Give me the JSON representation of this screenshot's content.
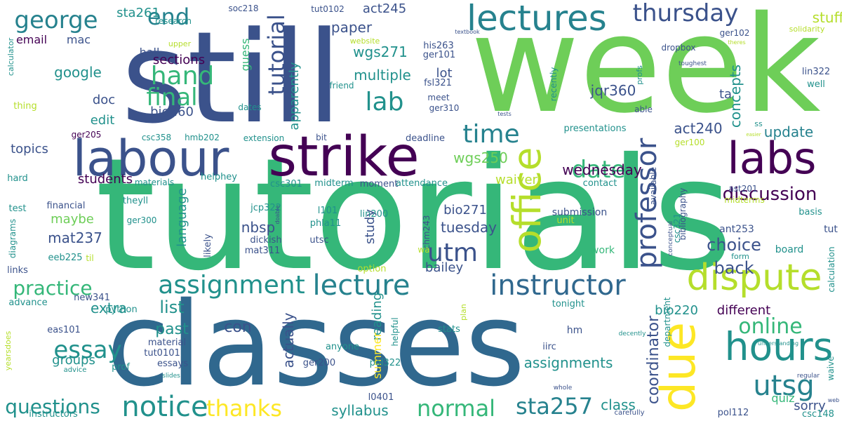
{
  "title": "",
  "colors": {
    "background": "#ffffff",
    "dark_purple": "#440154",
    "indigo": "#3b528b",
    "blue": "#30688e",
    "teal_blue": "#26828e",
    "teal": "#21918c",
    "green_teal": "#35b779",
    "green": "#6ece58",
    "lime": "#b5de2b",
    "yellow": "#fde725"
  },
  "words": [
    {
      "text": "tutorials"
    },
    {
      "text": "week"
    },
    {
      "text": "still"
    },
    {
      "text": "classes"
    },
    {
      "text": "strike"
    },
    {
      "text": "labour"
    },
    {
      "text": "lectures"
    },
    {
      "text": "due"
    },
    {
      "text": "labs"
    },
    {
      "text": "office"
    },
    {
      "text": "hours"
    },
    {
      "text": "dispute"
    },
    {
      "text": "lecture"
    },
    {
      "text": "instructor"
    },
    {
      "text": "assignment"
    },
    {
      "text": "notice"
    },
    {
      "text": "professor"
    },
    {
      "text": "thursday"
    },
    {
      "text": "george"
    },
    {
      "text": "end"
    },
    {
      "text": "tutorial"
    },
    {
      "text": "lab"
    },
    {
      "text": "hand"
    },
    {
      "text": "final"
    },
    {
      "text": "time"
    },
    {
      "text": "date"
    },
    {
      "text": "utm"
    },
    {
      "text": "utsg"
    },
    {
      "text": "online"
    },
    {
      "text": "discussion"
    },
    {
      "text": "essay"
    },
    {
      "text": "practice"
    },
    {
      "text": "questions"
    },
    {
      "text": "thanks"
    },
    {
      "text": "normal"
    },
    {
      "text": "sta257"
    },
    {
      "text": "assignments"
    },
    {
      "text": "coordinator"
    },
    {
      "text": "wednesday"
    },
    {
      "text": "tuesday"
    },
    {
      "text": "update"
    },
    {
      "text": "choice"
    },
    {
      "text": "back"
    },
    {
      "text": "stuff"
    },
    {
      "text": "sta261"
    },
    {
      "text": "act245"
    },
    {
      "text": "paper"
    },
    {
      "text": "wgs271"
    },
    {
      "text": "multiple"
    },
    {
      "text": "apparently"
    },
    {
      "text": "guess"
    },
    {
      "text": "sections"
    },
    {
      "text": "email"
    },
    {
      "text": "mac"
    },
    {
      "text": "google"
    },
    {
      "text": "doc"
    },
    {
      "text": "edit"
    },
    {
      "text": "bio260"
    },
    {
      "text": "topics"
    },
    {
      "text": "students"
    },
    {
      "text": "jqr360"
    },
    {
      "text": "concepts"
    },
    {
      "text": "act240"
    },
    {
      "text": "wgs250"
    },
    {
      "text": "waiver"
    },
    {
      "text": "language"
    },
    {
      "text": "nbsp"
    },
    {
      "text": "bio271"
    },
    {
      "text": "bailey"
    },
    {
      "text": "list"
    },
    {
      "text": "past"
    },
    {
      "text": "extra"
    },
    {
      "text": "con"
    },
    {
      "text": "maybe"
    },
    {
      "text": "mat237"
    },
    {
      "text": "groups"
    },
    {
      "text": "actually"
    },
    {
      "text": "study"
    },
    {
      "text": "reading"
    },
    {
      "text": "summer"
    },
    {
      "text": "syllabus"
    },
    {
      "text": "class"
    },
    {
      "text": "different"
    },
    {
      "text": "sorry"
    },
    {
      "text": "quiz"
    },
    {
      "text": "bio220"
    },
    {
      "text": "hall"
    },
    {
      "text": "lot"
    },
    {
      "text": "ta"
    },
    {
      "text": "ger205"
    },
    {
      "text": "csc358"
    },
    {
      "text": "hmb202"
    },
    {
      "text": "extension"
    },
    {
      "text": "bit"
    },
    {
      "text": "deadline"
    },
    {
      "text": "presentations"
    },
    {
      "text": "helphey"
    },
    {
      "text": "materials"
    },
    {
      "text": "csc301"
    },
    {
      "text": "midterm"
    },
    {
      "text": "moment"
    },
    {
      "text": "attendance"
    },
    {
      "text": "contact"
    },
    {
      "text": "available"
    },
    {
      "text": "ast201"
    },
    {
      "text": "midterms"
    },
    {
      "text": "basis"
    },
    {
      "text": "ant253"
    },
    {
      "text": "tut"
    },
    {
      "text": "hard"
    },
    {
      "text": "test"
    },
    {
      "text": "financial"
    },
    {
      "text": "theyll"
    },
    {
      "text": "ger300"
    },
    {
      "text": "jcp322"
    },
    {
      "text": "l101"
    },
    {
      "text": "lin200"
    },
    {
      "text": "chm243"
    },
    {
      "text": "phla11"
    },
    {
      "text": "utsc"
    },
    {
      "text": "dickish"
    },
    {
      "text": "mat311"
    },
    {
      "text": "likely"
    },
    {
      "text": "diagrams"
    },
    {
      "text": "eeb225"
    },
    {
      "text": "til"
    },
    {
      "text": "links"
    },
    {
      "text": "advance"
    },
    {
      "text": "new341"
    },
    {
      "text": "python"
    },
    {
      "text": "eas101"
    },
    {
      "text": "material"
    },
    {
      "text": "tut0101"
    },
    {
      "text": "essays"
    },
    {
      "text": "prof"
    },
    {
      "text": "instructors"
    },
    {
      "text": "advice"
    },
    {
      "text": "slides"
    },
    {
      "text": "yearsdoes"
    },
    {
      "text": "ger200"
    },
    {
      "text": "pol322"
    },
    {
      "text": "anyone"
    },
    {
      "text": "helpful"
    },
    {
      "text": "stats"
    },
    {
      "text": "plan"
    },
    {
      "text": "option"
    },
    {
      "text": "l0401"
    },
    {
      "text": "iirc"
    },
    {
      "text": "hm"
    },
    {
      "text": "tonight"
    },
    {
      "text": "department"
    },
    {
      "text": "whole"
    },
    {
      "text": "carefully"
    },
    {
      "text": "pol112"
    },
    {
      "text": "csc148"
    },
    {
      "text": "regular"
    },
    {
      "text": "understanding"
    },
    {
      "text": "decently"
    },
    {
      "text": "web"
    },
    {
      "text": "waive"
    },
    {
      "text": "calculation"
    },
    {
      "text": "form"
    },
    {
      "text": "conceptual"
    },
    {
      "text": "csc321"
    },
    {
      "text": "bibliography"
    },
    {
      "text": "submission"
    },
    {
      "text": "unit"
    },
    {
      "text": "work"
    },
    {
      "text": "board"
    },
    {
      "text": "soc218"
    },
    {
      "text": "research"
    },
    {
      "text": "calculator"
    },
    {
      "text": "upper"
    },
    {
      "text": "tut0102"
    },
    {
      "text": "website"
    },
    {
      "text": "his263"
    },
    {
      "text": "ger101"
    },
    {
      "text": "fsl321"
    },
    {
      "text": "friend"
    },
    {
      "text": "meet"
    },
    {
      "text": "ger310"
    },
    {
      "text": "textbook"
    },
    {
      "text": "dropbox"
    },
    {
      "text": "profs"
    },
    {
      "text": "ger102"
    },
    {
      "text": "solidarity"
    },
    {
      "text": "theres"
    },
    {
      "text": "toughest"
    },
    {
      "text": "lin322"
    },
    {
      "text": "well"
    },
    {
      "text": "recently"
    },
    {
      "text": "able"
    },
    {
      "text": "tests"
    },
    {
      "text": "thing"
    },
    {
      "text": "dates"
    },
    {
      "text": "ss"
    },
    {
      "text": "easier"
    },
    {
      "text": "ger100"
    },
    {
      "text": "doable"
    },
    {
      "text": "wa"
    }
  ]
}
